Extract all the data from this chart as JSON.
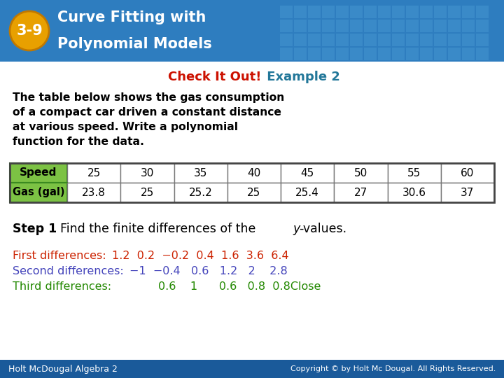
{
  "header_bg": "#2e7dbf",
  "header_badge_bg": "#e8a000",
  "header_badge_text": "3-9",
  "header_title_line1": "Curve Fitting with",
  "header_title_line2": "Polynomial Models",
  "subtitle_red": "Check It Out!",
  "subtitle_teal": " Example 2",
  "body_bg": "#ffffff",
  "body_text_lines": [
    "The table below shows the gas consumption",
    "of a compact car driven a constant distance",
    "at various speed. Write a polynomial",
    "function for the data."
  ],
  "table_header_bg": "#7cc244",
  "table_header_border": "#5a9a30",
  "table_row1_label": "Speed",
  "table_row2_label": "Gas (gal)",
  "table_col_values": [
    "25",
    "30",
    "35",
    "40",
    "45",
    "50",
    "55",
    "60"
  ],
  "table_gas_values": [
    "23.8",
    "25",
    "25.2",
    "25",
    "25.4",
    "27",
    "30.6",
    "37"
  ],
  "step1_bold": "Step 1",
  "step1_rest": "  Find the finite differences of the ",
  "step1_italic": "y",
  "step1_end": "-values.",
  "first_diff_label": "First differences:",
  "first_diff_vals": "1.2  0.2  −0.2  0.4  1.6  3.6  6.4",
  "second_diff_label": "Second differences:",
  "second_diff_vals": "−1  −0.4   0.6   1.2   2    2.8",
  "third_diff_label": "Third differences:",
  "third_diff_vals": "        0.6    1      0.6   0.8  0.8Close",
  "first_diff_color": "#cc2200",
  "second_diff_color": "#4444bb",
  "third_diff_color": "#228800",
  "footer_bg": "#1a5a9a",
  "footer_left": "Holt McDougal Algebra 2",
  "footer_right": "Copyright © by Holt Mc Dougal. All Rights Reserved."
}
